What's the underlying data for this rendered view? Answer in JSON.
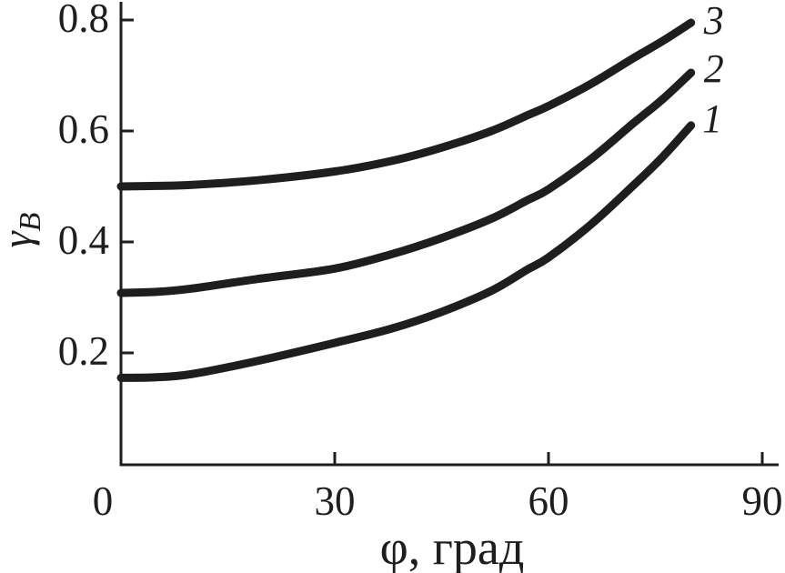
{
  "figure": {
    "background": "#ffffff",
    "ink_color": "#1e1e1e"
  },
  "chart_data": {
    "type": "line",
    "title": "",
    "xlabel": "φ, град",
    "ylabel_symbol": "γ",
    "ylabel_subscript": "B",
    "xlim": [
      0,
      90
    ],
    "ylim": [
      0,
      0.8
    ],
    "grid": false,
    "legend": "inline numeric labels at right ends of curves",
    "x_ticks": [
      {
        "value": 0,
        "label": "0",
        "mark": false
      },
      {
        "value": 30,
        "label": "30",
        "mark": true
      },
      {
        "value": 60,
        "label": "60",
        "mark": true
      },
      {
        "value": 90,
        "label": "90",
        "mark": true
      }
    ],
    "y_ticks": [
      {
        "value": 0.2,
        "label": "0.2"
      },
      {
        "value": 0.4,
        "label": "0.4"
      },
      {
        "value": 0.6,
        "label": "0.6"
      },
      {
        "value": 0.8,
        "label": "0.8"
      }
    ],
    "series": [
      {
        "label": "1",
        "label_at": [
          83.0,
          0.623
        ],
        "points": [
          [
            0,
            0.155
          ],
          [
            5,
            0.156
          ],
          [
            10,
            0.162
          ],
          [
            19,
            0.185
          ],
          [
            30,
            0.218
          ],
          [
            38,
            0.244
          ],
          [
            45,
            0.274
          ],
          [
            52,
            0.312
          ],
          [
            57,
            0.35
          ],
          [
            60,
            0.372
          ],
          [
            66,
            0.432
          ],
          [
            72,
            0.503
          ],
          [
            76,
            0.553
          ],
          [
            80,
            0.61
          ]
        ]
      },
      {
        "label": "2",
        "label_at": [
          83.2,
          0.713
        ],
        "points": [
          [
            0,
            0.308
          ],
          [
            5,
            0.31
          ],
          [
            10,
            0.316
          ],
          [
            19,
            0.333
          ],
          [
            30,
            0.352
          ],
          [
            38,
            0.378
          ],
          [
            45,
            0.407
          ],
          [
            52,
            0.442
          ],
          [
            57,
            0.475
          ],
          [
            60,
            0.495
          ],
          [
            66,
            0.55
          ],
          [
            72,
            0.615
          ],
          [
            76,
            0.657
          ],
          [
            80,
            0.705
          ]
        ]
      },
      {
        "label": "3",
        "label_at": [
          83.2,
          0.8
        ],
        "points": [
          [
            0,
            0.5
          ],
          [
            5,
            0.501
          ],
          [
            10,
            0.503
          ],
          [
            19,
            0.511
          ],
          [
            30,
            0.527
          ],
          [
            38,
            0.546
          ],
          [
            45,
            0.57
          ],
          [
            52,
            0.6
          ],
          [
            57,
            0.628
          ],
          [
            60,
            0.645
          ],
          [
            66,
            0.685
          ],
          [
            72,
            0.732
          ],
          [
            76,
            0.762
          ],
          [
            80,
            0.795
          ]
        ]
      }
    ]
  }
}
